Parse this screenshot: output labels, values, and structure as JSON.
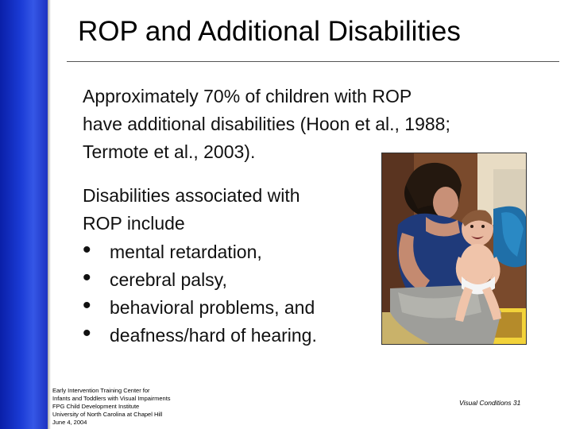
{
  "slide": {
    "title": "ROP and Additional Disabilities",
    "intro_lines": [
      "Approximately 70% of children with ROP",
      "have additional disabilities (Hoon et al., 1988;",
      "Termote et al., 2003)."
    ],
    "list_intro_lines": [
      "Disabilities associated with",
      "ROP include"
    ],
    "bullet_symbol": "•",
    "bullets": [
      "mental retardation,",
      "cerebral palsy,",
      "behavioral problems, and",
      "deafness/hard of hearing."
    ]
  },
  "footer": {
    "lines": [
      "Early Intervention Training Center for",
      "Infants and Toddlers with Visual Impairments",
      "FPG Child Development Institute",
      "University of North Carolina at Chapel Hill",
      "June 4, 2004"
    ],
    "page_label": "Visual Conditions 31"
  },
  "colors": {
    "accent_bar": "#1b3cd6",
    "text": "#111111"
  }
}
